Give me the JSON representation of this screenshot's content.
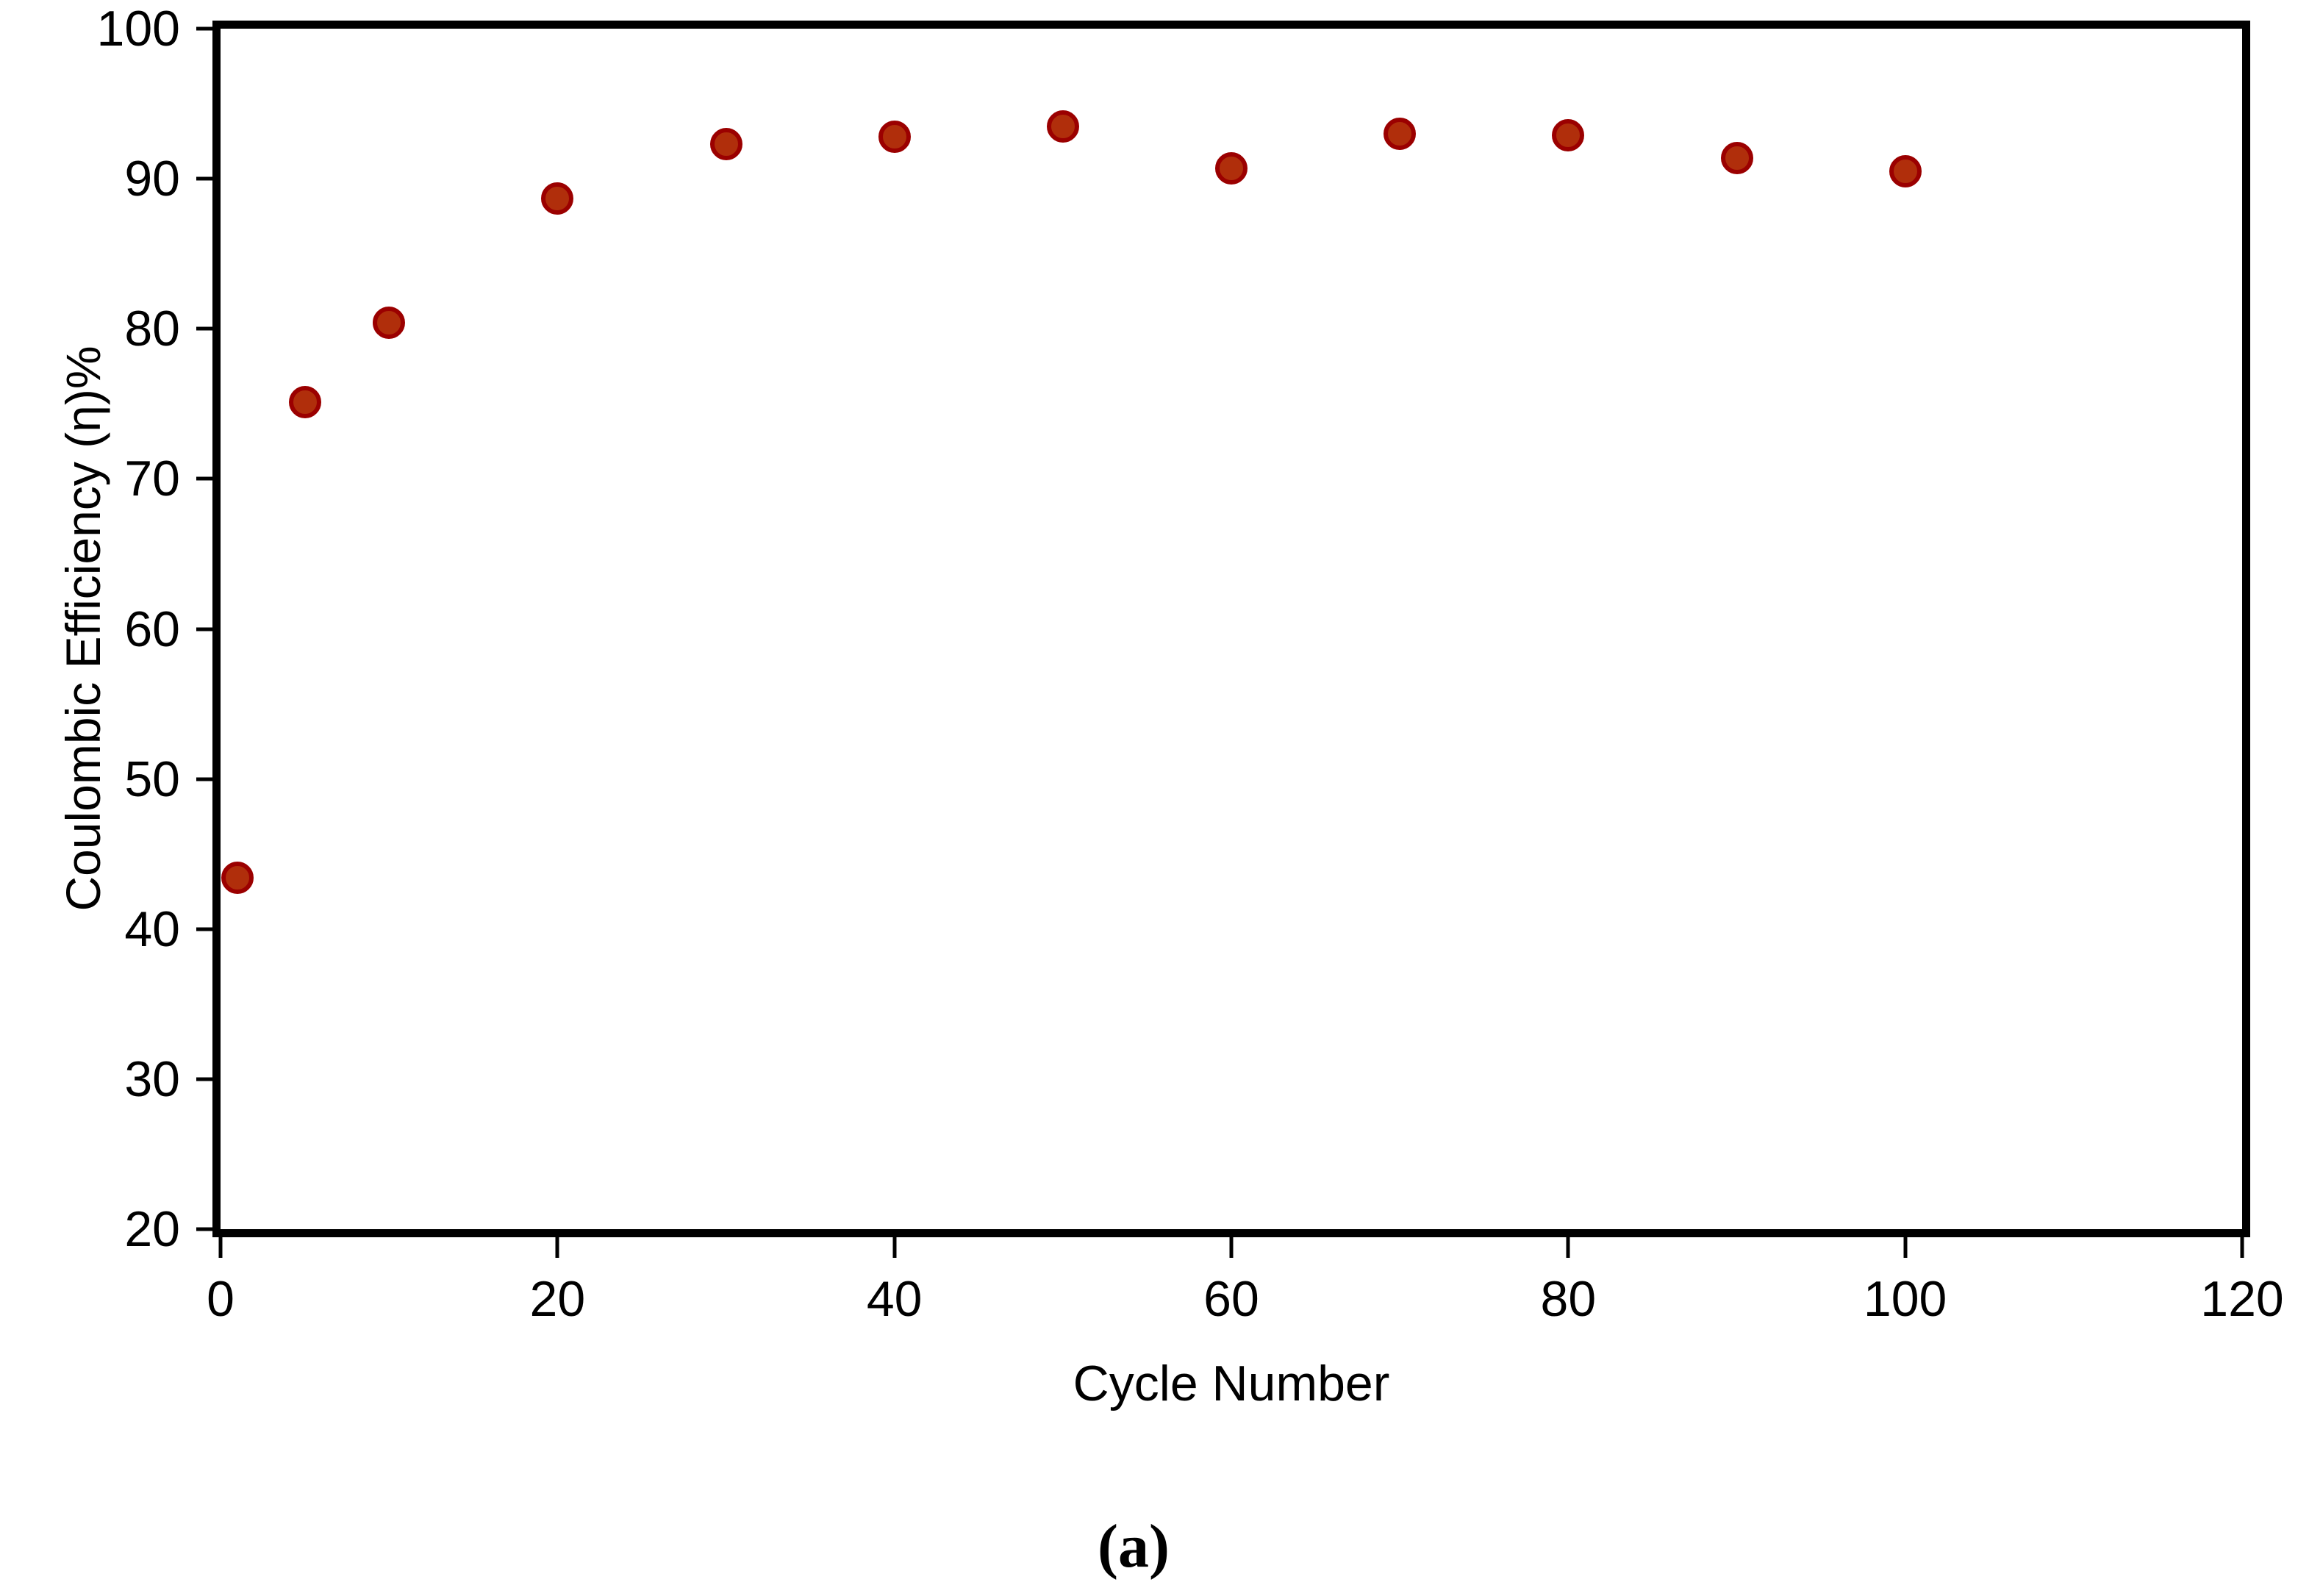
{
  "figure": {
    "caption": "(a)"
  },
  "chart_data": {
    "type": "scatter",
    "title": "",
    "xlabel": "Cycle Number",
    "ylabel": "Coulombic Efficiency (η)%",
    "xlim": [
      0,
      120
    ],
    "ylim": [
      20,
      100
    ],
    "x_ticks": [
      0,
      20,
      40,
      60,
      80,
      100,
      120
    ],
    "y_ticks": [
      20,
      30,
      40,
      50,
      60,
      70,
      80,
      90,
      100
    ],
    "grid": false,
    "legend": false,
    "frame": "full-box",
    "axis_color": "#000000",
    "series": [
      {
        "name": "Coulombic efficiency",
        "marker": "circle",
        "marker_fill": "#B02E0B",
        "marker_stroke": "#9B0000",
        "points": [
          {
            "x": 1,
            "y": 43.4
          },
          {
            "x": 5,
            "y": 75.1
          },
          {
            "x": 10,
            "y": 80.4
          },
          {
            "x": 20,
            "y": 88.7
          },
          {
            "x": 30,
            "y": 92.3
          },
          {
            "x": 40,
            "y": 92.8
          },
          {
            "x": 50,
            "y": 93.5
          },
          {
            "x": 60,
            "y": 90.7
          },
          {
            "x": 70,
            "y": 93.0
          },
          {
            "x": 80,
            "y": 92.9
          },
          {
            "x": 90,
            "y": 91.4
          },
          {
            "x": 100,
            "y": 90.5
          }
        ]
      }
    ]
  }
}
